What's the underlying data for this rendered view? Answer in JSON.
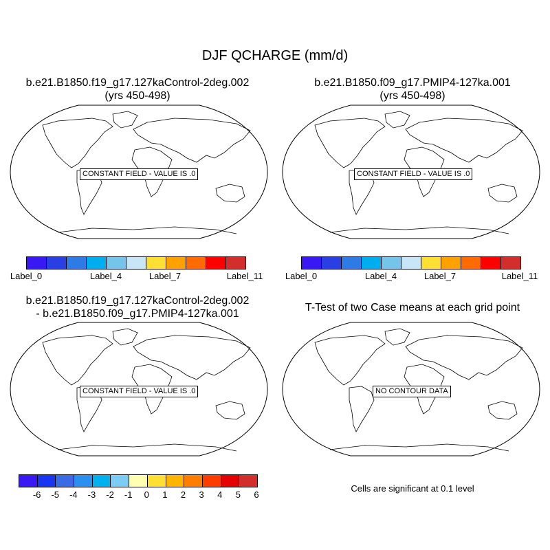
{
  "figure_title": "DJF QCHARGE (mm/d)",
  "panels": [
    {
      "title_line1": "b.e21.B1850.f19_g17.127kaControl-2deg.002",
      "title_line2": "(yrs 450-498)",
      "message": "CONSTANT FIELD - VALUE IS .0"
    },
    {
      "title_line1": "b.e21.B1850.f09_g17.PMIP4-127ka.001",
      "title_line2": "(yrs 450-498)",
      "message": "CONSTANT FIELD - VALUE IS .0"
    },
    {
      "title_line1": "b.e21.B1850.f19_g17.127kaControl-2deg.002",
      "title_line2": "- b.e21.B1850.f09_g17.PMIP4-127ka.001",
      "message": "CONSTANT FIELD - VALUE IS .0"
    },
    {
      "title_line1": "T-Test of two Case means at each grid point",
      "message": "NO CONTOUR DATA",
      "note": "Cells are significant at 0.1 level"
    }
  ],
  "colorbar_case": {
    "colors": [
      "#3a18f4",
      "#2a3fe3",
      "#2e7be6",
      "#00aeef",
      "#75c5ea",
      "#c8e6f6",
      "#fee034",
      "#ffa200",
      "#ff6b00",
      "#ff0000",
      "#d42e2c"
    ],
    "labels": [
      "Label_0",
      "Label_4",
      "Label_7",
      "Label_11"
    ]
  },
  "colorbar_diff": {
    "colors": [
      "#3a18f4",
      "#1a35f1",
      "#3b6ae6",
      "#2b8ff0",
      "#00b0ef",
      "#7ccdf3",
      "#feffb0",
      "#fee034",
      "#ffb400",
      "#ff7d00",
      "#ff3c00",
      "#e50000",
      "#d42e2c"
    ],
    "labels": [
      "-6",
      "-5",
      "-4",
      "-3",
      "-2",
      "-1",
      "0",
      "1",
      "2",
      "3",
      "4",
      "5",
      "6"
    ]
  }
}
